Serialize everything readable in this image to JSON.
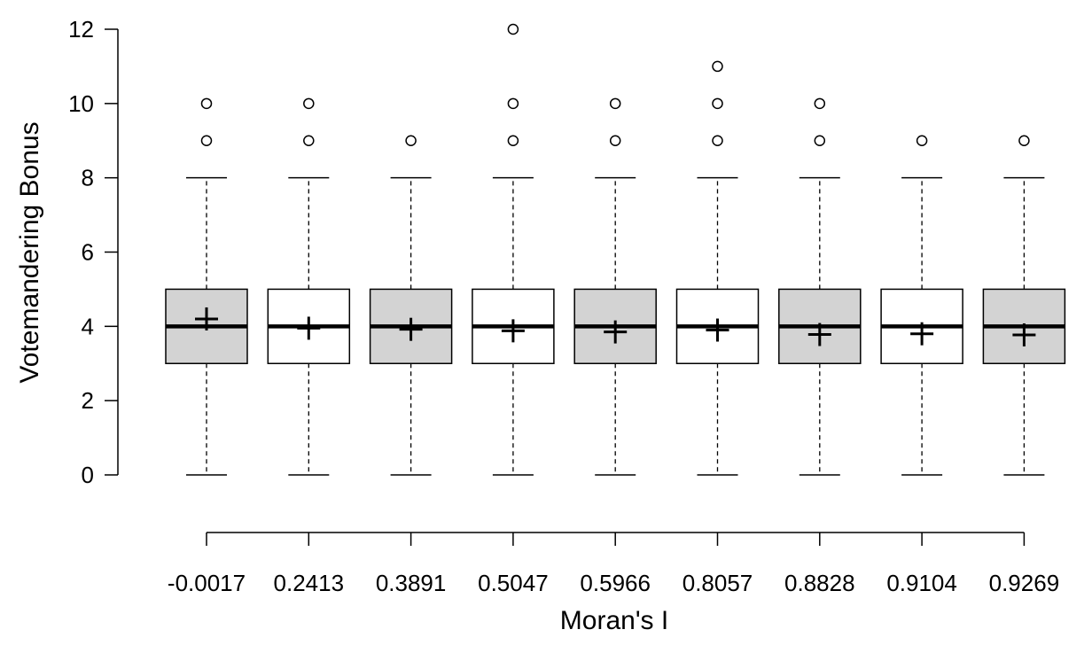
{
  "chart_data": {
    "type": "boxplot",
    "title": "",
    "xlabel": "Moran's I",
    "ylabel": "Votemandering Bonus",
    "ylim": [
      0,
      12
    ],
    "yticks": [
      "0",
      "2",
      "4",
      "6",
      "8",
      "10",
      "12"
    ],
    "grid": false,
    "legend": "none",
    "box_fills": [
      "#d3d3d3",
      "#ffffff"
    ],
    "categories": [
      "-0.0017",
      "0.2413",
      "0.3891",
      "0.5047",
      "0.5966",
      "0.8057",
      "0.8828",
      "0.9104",
      "0.9269"
    ],
    "boxes": [
      {
        "label": "-0.0017",
        "min": 0,
        "q1": 3,
        "median": 4,
        "q3": 5,
        "max": 8,
        "mean": 4.2,
        "outliers": [
          9,
          10
        ]
      },
      {
        "label": "0.2413",
        "min": 0,
        "q1": 3,
        "median": 4,
        "q3": 5,
        "max": 8,
        "mean": 3.95,
        "outliers": [
          9,
          10
        ]
      },
      {
        "label": "0.3891",
        "min": 0,
        "q1": 3,
        "median": 4,
        "q3": 5,
        "max": 8,
        "mean": 3.92,
        "outliers": [
          9
        ]
      },
      {
        "label": "0.5047",
        "min": 0,
        "q1": 3,
        "median": 4,
        "q3": 5,
        "max": 8,
        "mean": 3.88,
        "outliers": [
          9,
          10,
          12
        ]
      },
      {
        "label": "0.5966",
        "min": 0,
        "q1": 3,
        "median": 4,
        "q3": 5,
        "max": 8,
        "mean": 3.85,
        "outliers": [
          9,
          10
        ]
      },
      {
        "label": "0.8057",
        "min": 0,
        "q1": 3,
        "median": 4,
        "q3": 5,
        "max": 8,
        "mean": 3.9,
        "outliers": [
          9,
          10,
          11
        ]
      },
      {
        "label": "0.8828",
        "min": 0,
        "q1": 3,
        "median": 4,
        "q3": 5,
        "max": 8,
        "mean": 3.78,
        "outliers": [
          9,
          10
        ]
      },
      {
        "label": "0.9104",
        "min": 0,
        "q1": 3,
        "median": 4,
        "q3": 5,
        "max": 8,
        "mean": 3.8,
        "outliers": [
          9
        ]
      },
      {
        "label": "0.9269",
        "min": 0,
        "q1": 3,
        "median": 4,
        "q3": 5,
        "max": 8,
        "mean": 3.77,
        "outliers": [
          9
        ]
      }
    ]
  }
}
